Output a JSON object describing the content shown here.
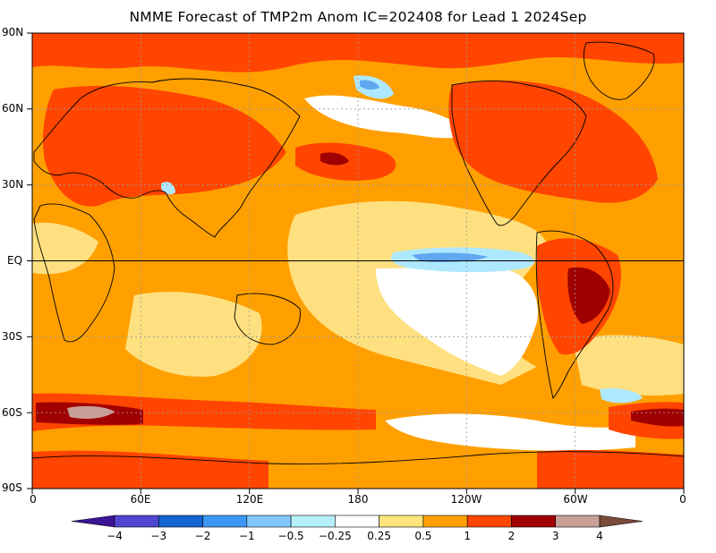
{
  "title": "NMME Forecast of TMP2m Anom IC=202408 for Lead 1 2024Sep",
  "map": {
    "variable": "TMP2m Anom",
    "projection": "cylindrical",
    "lat_labels": [
      "90N",
      "60N",
      "30N",
      "EQ",
      "30S",
      "60S",
      "90S"
    ],
    "lon_labels": [
      "0",
      "60E",
      "120E",
      "180",
      "120W",
      "60W",
      "0"
    ],
    "grid": "dotted",
    "equator_line": true,
    "colors": {
      "ocean_base": "#ffa000",
      "neutral": "#ffffff",
      "weak_warm": "#ffe080",
      "warm": "#ff4500",
      "strong_warm": "#a00000",
      "extreme_warm": "#c8a097",
      "weak_cool": "#aee8ff",
      "cool": "#60a8f0",
      "coast": "#000000"
    }
  },
  "colorbar": {
    "levels": [
      "−4",
      "−3",
      "−2",
      "−1",
      "−0.5",
      "−0.25",
      "0.25",
      "0.5",
      "1",
      "2",
      "3",
      "4"
    ],
    "colors": [
      "#3c1496",
      "#5046d2",
      "#1464d2",
      "#3c96f5",
      "#82c8ff",
      "#b4f0fa",
      "#ffffff",
      "#ffe57d",
      "#ffa000",
      "#ff4500",
      "#a00000",
      "#c8a097",
      "#7a4b3a"
    ]
  }
}
